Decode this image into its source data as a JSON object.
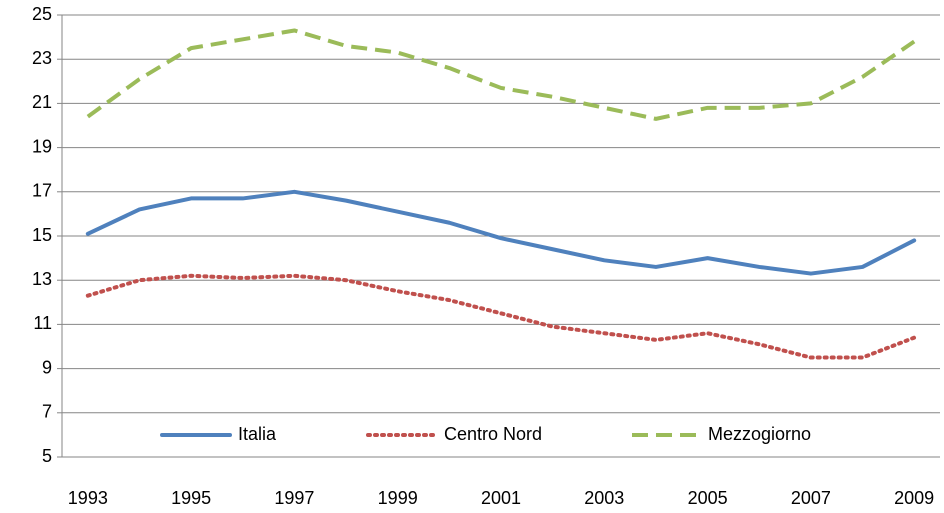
{
  "chart_data": {
    "type": "line",
    "categories": [
      "1993",
      null,
      "1995",
      null,
      "1997",
      null,
      "1999",
      null,
      "2001",
      null,
      "2003",
      null,
      "2005",
      null,
      "2007",
      null,
      "2009"
    ],
    "series": [
      {
        "name": "Italia",
        "color": "#4f81bd",
        "dash": "solid",
        "values": [
          15.1,
          16.2,
          16.7,
          16.7,
          17.0,
          16.6,
          16.1,
          15.6,
          14.9,
          14.4,
          13.9,
          13.6,
          14.0,
          13.6,
          13.3,
          13.6,
          14.8
        ]
      },
      {
        "name": "Centro Nord",
        "color": "#c0504d",
        "dash": "dotted",
        "values": [
          12.3,
          13.0,
          13.2,
          13.1,
          13.2,
          13.0,
          12.5,
          12.1,
          11.5,
          10.9,
          10.6,
          10.3,
          10.6,
          10.1,
          9.5,
          9.5,
          10.4
        ]
      },
      {
        "name": "Mezzogiorno",
        "color": "#9bbb59",
        "dash": "dashed",
        "values": [
          20.4,
          22.1,
          23.5,
          23.9,
          24.3,
          23.6,
          23.3,
          22.6,
          21.7,
          21.3,
          20.8,
          20.3,
          20.8,
          20.8,
          21.0,
          22.2,
          23.8
        ]
      }
    ],
    "ylim": [
      5,
      25
    ],
    "yticks": [
      5,
      7,
      9,
      11,
      13,
      15,
      17,
      19,
      21,
      23,
      25
    ],
    "grid": true,
    "legend": "bottom"
  }
}
